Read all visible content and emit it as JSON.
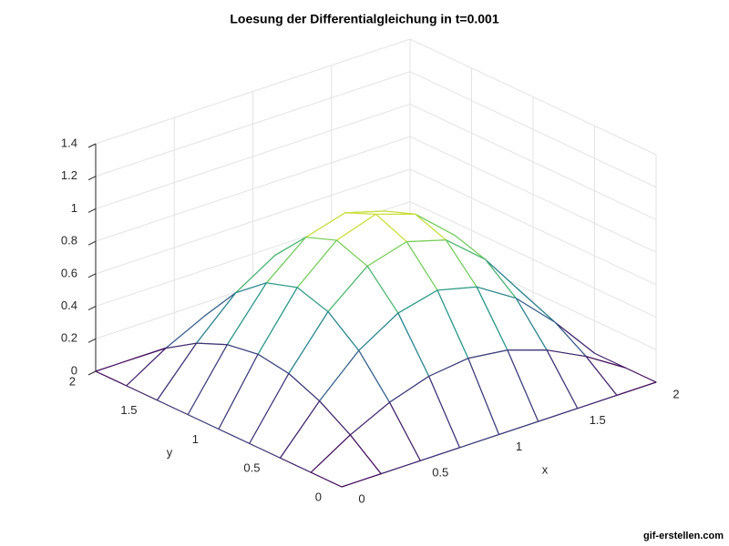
{
  "chart_data": {
    "type": "surface",
    "title": "Loesung der Differentialgleichung in t=0.001",
    "xlabel": "x",
    "ylabel": "y",
    "x": [
      0,
      0.25,
      0.5,
      0.75,
      1,
      1.25,
      1.5,
      1.75,
      2
    ],
    "y": [
      0,
      0.25,
      0.5,
      0.75,
      1,
      1.25,
      1.5,
      1.75,
      2
    ],
    "z": [
      [
        0,
        0,
        0,
        0,
        0,
        0,
        0,
        0,
        0
      ],
      [
        0,
        0.15,
        0.27,
        0.35,
        0.38,
        0.35,
        0.27,
        0.15,
        0
      ],
      [
        0,
        0.27,
        0.5,
        0.65,
        0.71,
        0.65,
        0.5,
        0.27,
        0
      ],
      [
        0,
        0.35,
        0.65,
        0.85,
        0.92,
        0.85,
        0.65,
        0.35,
        0
      ],
      [
        0,
        0.38,
        0.71,
        0.92,
        1,
        0.92,
        0.71,
        0.38,
        0
      ],
      [
        0,
        0.35,
        0.65,
        0.85,
        0.92,
        0.85,
        0.65,
        0.35,
        0
      ],
      [
        0,
        0.27,
        0.5,
        0.65,
        0.71,
        0.65,
        0.5,
        0.27,
        0
      ],
      [
        0,
        0.15,
        0.27,
        0.35,
        0.38,
        0.35,
        0.27,
        0.15,
        0
      ],
      [
        0,
        0,
        0,
        0,
        0,
        0,
        0,
        0,
        0
      ]
    ],
    "contour_levels": [
      0.1,
      0.2,
      0.3,
      0.4,
      0.5,
      0.6,
      0.7,
      0.8,
      0.9
    ],
    "xlim": [
      0,
      2
    ],
    "ylim": [
      0,
      2
    ],
    "zlim": [
      0,
      1.4
    ],
    "xticks": [
      0,
      0.5,
      1,
      1.5,
      2
    ],
    "yticks": [
      0,
      0.5,
      1,
      1.5,
      2
    ],
    "zticks": [
      0,
      0.2,
      0.4,
      0.6,
      0.8,
      1,
      1.2,
      1.4
    ],
    "colormap": "viridis",
    "grid": true
  },
  "watermark": "gif-erstellen.com"
}
